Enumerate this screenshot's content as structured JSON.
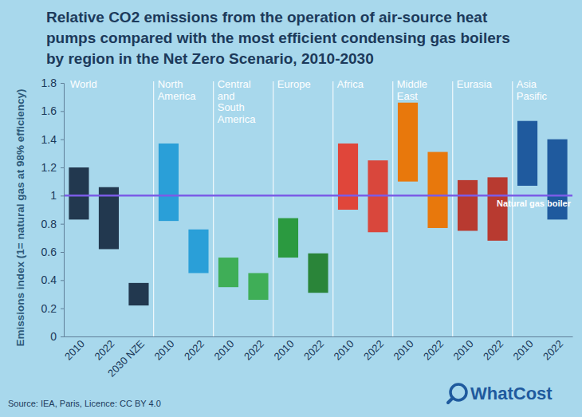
{
  "chart_data": {
    "type": "floating_bar",
    "title": "Relative CO2 emissions from the operation of air-source heat pumps compared with the most efficient condensing gas boilers by region in the Net Zero Scenario, 2010-2030",
    "y_label": "Emissions index (1= natural gas at 98% efficiency)",
    "source": "Source: IEA, Paris, Licence: CC BY 4.0",
    "logo": "WhatCost",
    "ylim": [
      0,
      1.8
    ],
    "yticks": [
      0,
      0.2,
      0.4,
      0.6,
      0.8,
      1,
      1.2,
      1.4,
      1.6,
      1.8
    ],
    "grid": false,
    "reference_line": {
      "value": 1,
      "label": "Natural gas boiler",
      "color": "#7b5ce6"
    },
    "groups": [
      {
        "name": "World",
        "categories": [
          "2010",
          "2022",
          "2030 NZE"
        ],
        "low": [
          0.83,
          0.62,
          0.22
        ],
        "high": [
          1.2,
          1.06,
          0.38
        ],
        "colors": [
          "#22384f",
          "#22384f",
          "#22384f"
        ]
      },
      {
        "name": "North America",
        "categories": [
          "2010",
          "2022"
        ],
        "low": [
          0.82,
          0.45
        ],
        "high": [
          1.37,
          0.76
        ],
        "colors": [
          "#2a9fd8",
          "#2a9fd8"
        ]
      },
      {
        "name": "Central and South America",
        "categories": [
          "2010",
          "2022"
        ],
        "low": [
          0.35,
          0.26
        ],
        "high": [
          0.56,
          0.45
        ],
        "colors": [
          "#3fae57",
          "#3fae57"
        ]
      },
      {
        "name": "Europe",
        "categories": [
          "2010",
          "2022"
        ],
        "low": [
          0.56,
          0.31
        ],
        "high": [
          0.84,
          0.59
        ],
        "colors": [
          "#2b9a40",
          "#2a8539"
        ]
      },
      {
        "name": "Africa",
        "categories": [
          "2010",
          "2022"
        ],
        "low": [
          0.9,
          0.74
        ],
        "high": [
          1.37,
          1.25
        ],
        "colors": [
          "#e0463a",
          "#d9473c"
        ]
      },
      {
        "name": "Middle East",
        "categories": [
          "2010",
          "2022"
        ],
        "low": [
          1.1,
          0.77
        ],
        "high": [
          1.66,
          1.31
        ],
        "colors": [
          "#e8780c",
          "#e8780c"
        ]
      },
      {
        "name": "Eurasia",
        "categories": [
          "2010",
          "2022"
        ],
        "low": [
          0.75,
          0.68
        ],
        "high": [
          1.11,
          1.13
        ],
        "colors": [
          "#b83a30",
          "#b83a30"
        ]
      },
      {
        "name": "Asia Pasific",
        "categories": [
          "2010",
          "2022"
        ],
        "low": [
          1.07,
          0.83
        ],
        "high": [
          1.53,
          1.4
        ],
        "colors": [
          "#1f5a9e",
          "#1f5a9e"
        ]
      }
    ]
  }
}
